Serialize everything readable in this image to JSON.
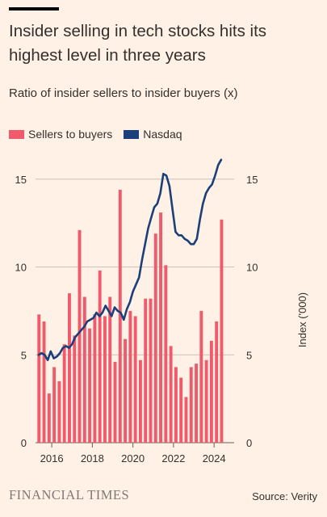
{
  "header": {
    "title": "Insider selling in tech stocks hits its highest level in three years",
    "subtitle": "Ratio of insider sellers to insider buyers (x)"
  },
  "legend": {
    "sellers_label": "Sellers to buyers",
    "nasdaq_label": "Nasdaq"
  },
  "footer": {
    "logo": "FINANCIAL TIMES",
    "source": "Source: Verity"
  },
  "colors": {
    "background": "#fff1e5",
    "bars": "#f05a6b",
    "line": "#1a3f7a",
    "grid": "#ccc1b7",
    "text": "#33302e"
  },
  "chart_data": {
    "type": "bar",
    "title": "Insider selling in tech stocks hits its highest level in three years",
    "subtitle": "Ratio of insider sellers to insider buyers (x)",
    "ylabel_left": "",
    "ylabel_right": "Index ('000)",
    "ylim": [
      0,
      16
    ],
    "yticks_left": [
      "0",
      "5",
      "10",
      "15"
    ],
    "yticks_right": [
      "0",
      "5",
      "10",
      "15"
    ],
    "xlim": [
      2015.2,
      2024.75
    ],
    "xticks": [
      "2016",
      "2018",
      "2020",
      "2022",
      "2024"
    ],
    "grid": true,
    "legend_position": "top-left",
    "series": [
      {
        "name": "Sellers to buyers",
        "kind": "bar",
        "x": [
          2015.37,
          2015.62,
          2015.87,
          2016.12,
          2016.37,
          2016.62,
          2016.87,
          2017.12,
          2017.37,
          2017.62,
          2017.87,
          2018.12,
          2018.37,
          2018.62,
          2018.87,
          2019.12,
          2019.37,
          2019.62,
          2019.87,
          2020.12,
          2020.37,
          2020.62,
          2020.87,
          2021.12,
          2021.37,
          2021.62,
          2021.87,
          2022.12,
          2022.37,
          2022.62,
          2022.87,
          2023.12,
          2023.37,
          2023.62,
          2023.87,
          2024.12,
          2024.37
        ],
        "values": [
          7.3,
          6.9,
          2.8,
          4.3,
          3.5,
          5.6,
          8.5,
          6.1,
          12.1,
          8.3,
          6.5,
          7.3,
          9.8,
          7.2,
          8.3,
          4.6,
          14.4,
          5.9,
          7.5,
          7.2,
          4.7,
          8.2,
          8.2,
          11.9,
          13.1,
          10.1,
          5.5,
          4.3,
          3.7,
          2.6,
          4.3,
          4.5,
          7.5,
          4.7,
          5.8,
          6.9,
          12.7
        ]
      },
      {
        "name": "Nasdaq",
        "kind": "line",
        "x": [
          2015.35,
          2015.5,
          2015.65,
          2015.8,
          2015.95,
          2016.1,
          2016.25,
          2016.4,
          2016.55,
          2016.7,
          2016.85,
          2017.0,
          2017.15,
          2017.3,
          2017.45,
          2017.6,
          2017.75,
          2017.9,
          2018.05,
          2018.2,
          2018.35,
          2018.5,
          2018.65,
          2018.8,
          2018.95,
          2019.1,
          2019.25,
          2019.4,
          2019.55,
          2019.7,
          2019.85,
          2020.0,
          2020.15,
          2020.3,
          2020.45,
          2020.6,
          2020.75,
          2020.9,
          2021.05,
          2021.2,
          2021.35,
          2021.5,
          2021.65,
          2021.8,
          2021.95,
          2022.1,
          2022.25,
          2022.4,
          2022.55,
          2022.7,
          2022.85,
          2023.0,
          2023.15,
          2023.3,
          2023.45,
          2023.6,
          2023.75,
          2023.9,
          2024.05,
          2024.2,
          2024.35
        ],
        "values": [
          5.0,
          5.1,
          5.0,
          4.7,
          5.2,
          4.8,
          4.9,
          5.1,
          5.4,
          5.5,
          5.4,
          5.6,
          6.0,
          6.2,
          6.4,
          6.6,
          6.9,
          7.0,
          7.1,
          7.4,
          7.2,
          7.4,
          7.8,
          7.5,
          7.2,
          7.7,
          7.5,
          7.4,
          7.0,
          7.6,
          8.0,
          8.6,
          9.0,
          9.4,
          10.4,
          11.3,
          12.2,
          12.8,
          13.4,
          13.6,
          14.2,
          15.3,
          15.2,
          14.6,
          13.3,
          12.0,
          11.8,
          11.8,
          11.6,
          11.5,
          11.3,
          11.3,
          11.6,
          12.7,
          13.6,
          14.2,
          14.5,
          14.7,
          15.2,
          15.8,
          16.1
        ]
      }
    ]
  }
}
